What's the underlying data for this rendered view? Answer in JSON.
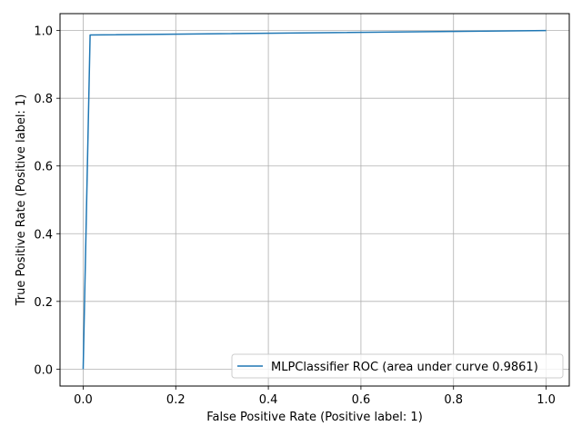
{
  "chart_data": {
    "type": "line",
    "title": "",
    "xlabel": "False Positive Rate (Positive label: 1)",
    "ylabel": "True Positive Rate (Positive label: 1)",
    "xlim": [
      -0.05,
      1.05
    ],
    "ylim": [
      -0.05,
      1.05
    ],
    "xticks": [
      0.0,
      0.2,
      0.4,
      0.6,
      0.8,
      1.0
    ],
    "yticks": [
      0.0,
      0.2,
      0.4,
      0.6,
      0.8,
      1.0
    ],
    "xtick_labels": [
      "0.0",
      "0.2",
      "0.4",
      "0.6",
      "0.8",
      "1.0"
    ],
    "ytick_labels": [
      "0.0",
      "0.2",
      "0.4",
      "0.6",
      "0.8",
      "1.0"
    ],
    "grid": true,
    "legend_position": "bottom-right",
    "series": [
      {
        "name": "MLPClassifier ROC (area under curve 0.9861)",
        "color": "#1f77b4",
        "x": [
          0.0,
          0.015,
          1.0
        ],
        "y": [
          0.0,
          0.987,
          1.0
        ]
      }
    ]
  }
}
